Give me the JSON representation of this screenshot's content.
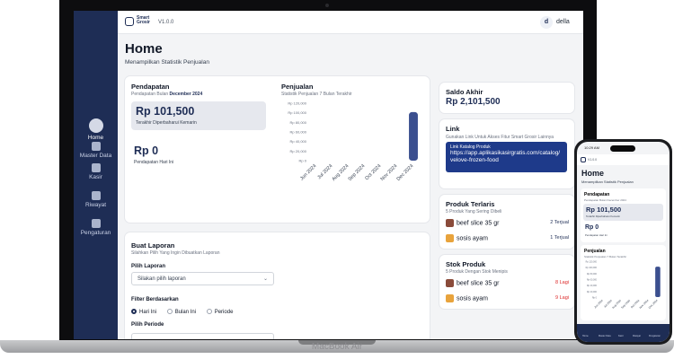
{
  "device": {
    "brand_label": "MacBook Air"
  },
  "app": {
    "logo_line1": "Smart",
    "logo_line2": "Grosir",
    "version": "V1.0.0",
    "user_initial": "d",
    "user_name": "della"
  },
  "sidebar": {
    "items": [
      {
        "label": "Home",
        "icon": "home-icon"
      },
      {
        "label": "Master Data",
        "icon": "cube-icon"
      },
      {
        "label": "Kasir",
        "icon": "calculator-icon"
      },
      {
        "label": "Riwayat",
        "icon": "list-icon"
      },
      {
        "label": "Pengaturan",
        "icon": "gear-icon"
      }
    ]
  },
  "page": {
    "title": "Home",
    "subtitle": "Menampilkan Statistik Penjualan"
  },
  "pendapatan": {
    "title": "Pendapatan",
    "subtitle_prefix": "Pendapatan Bulan",
    "month": "December 2024",
    "amount_main": "Rp 101,500",
    "amount_main_caption": "Terakhir Diperbaharui Kemarin",
    "amount_today": "Rp 0",
    "amount_today_caption": "Pendapatan Hari Ini"
  },
  "penjualan": {
    "title": "Penjualan",
    "subtitle": "Statistik Penjualan 7 Bulan Terakhir"
  },
  "chart_data": {
    "type": "bar",
    "title": "Penjualan",
    "categories": [
      "Jun 2024",
      "Jul 2024",
      "Aug 2024",
      "Sep 2024",
      "Oct 2024",
      "Nov 2024",
      "Dec 2024"
    ],
    "values": [
      0,
      0,
      0,
      0,
      0,
      0,
      101500
    ],
    "yticks": [
      "Rp 120,000",
      "Rp 100,000",
      "Rp 80,000",
      "Rp 60,000",
      "Rp 40,000",
      "Rp 20,000",
      "Rp 0"
    ],
    "ylim": [
      0,
      120000
    ],
    "color": "#3b4f8f"
  },
  "laporan": {
    "title": "Buat Laporan",
    "subtitle": "Silahkan Pilih Yang Ingin Dibuatkan Laporan",
    "pilih_label": "Pilih Laporan",
    "select_placeholder": "Silakan pilih laporan",
    "filter_label": "Filter Berdasarkan",
    "radio_options": [
      "Hari Ini",
      "Bulan Ini",
      "Periode"
    ],
    "periode_label": "Pilih Periode"
  },
  "saldo": {
    "title": "Saldo Akhir",
    "amount": "Rp 2,101,500"
  },
  "link": {
    "title": "Link",
    "subtitle": "Gunakan Link Untuk Akses Fitur Smart Grosir Lainnya",
    "box_label": "Link Katalog Produk",
    "url": "https://app.aplikasikasirgratis.com/catalog/velove-frozen-food"
  },
  "terlaris": {
    "title": "Produk Terlaris",
    "subtitle": "5 Produk Yang Sering Dibeli",
    "items": [
      {
        "name": "beef slice 35 gr",
        "value": "2 Terjual"
      },
      {
        "name": "sosis ayam",
        "value": "1 Terjual"
      }
    ]
  },
  "stok": {
    "title": "Stok Produk",
    "subtitle": "5 Produk Dengan Stok Menipis",
    "items": [
      {
        "name": "beef slice 35 gr",
        "value": "8 Lagi"
      },
      {
        "name": "sosis ayam",
        "value": "9 Lagi"
      }
    ]
  },
  "phone": {
    "time": "10:29 AM",
    "version": "V1.0.0",
    "title": "Home",
    "subtitle": "Menampilkan Statistik Penjualan",
    "pendapatan_title": "Pendapatan",
    "pendapatan_sub": "Pendapatan Bulan December 2024",
    "amount_main": "Rp 101,500",
    "amount_main_caption": "Terakhir Diperbaharui Kemarin",
    "amount_today": "Rp 0",
    "amount_today_caption": "Pendapatan Hari Ini",
    "penjualan_title": "Penjualan",
    "penjualan_sub": "Statistik Penjualan 7 Bulan Terakhir",
    "nav": [
      "Home",
      "Master Data",
      "Kasir",
      "Riwayat",
      "Pengaturan"
    ]
  }
}
